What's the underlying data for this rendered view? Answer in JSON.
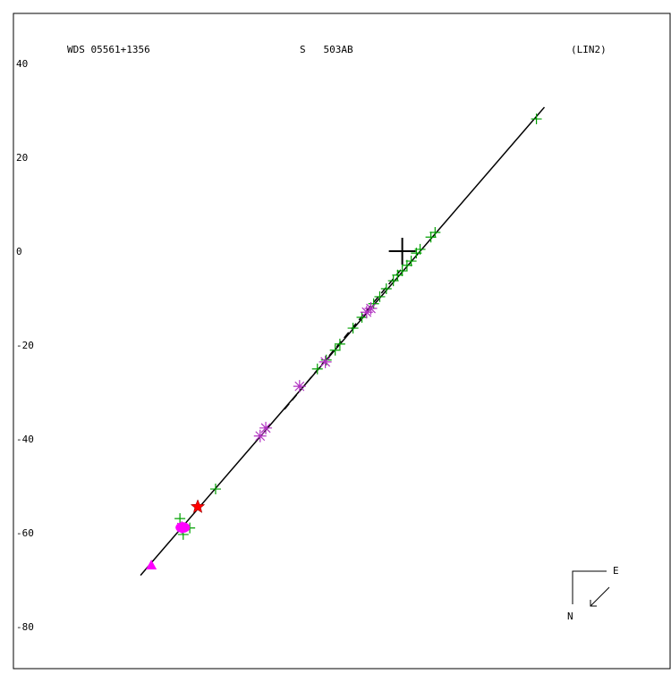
{
  "chart_data": {
    "type": "scatter",
    "title": "WDS 05561+1356",
    "subtitle": "S   503AB",
    "annotation": "(LIN2)",
    "compass": {
      "east": "E",
      "north": "N"
    },
    "xlim": [
      -82.9,
      57.1
    ],
    "ylim": [
      50.7,
      -89.0
    ],
    "yticks": [
      40,
      20,
      0,
      -20,
      -40,
      -60,
      -80
    ],
    "primary": {
      "x": 0,
      "y": 0,
      "color": "#000000"
    },
    "lines": [
      {
        "style": "solid",
        "color": "#000000",
        "x": [
          -55.8,
          30.3
        ],
        "y": [
          -69.1,
          30.7
        ]
      },
      {
        "style": "dashed",
        "color": "#000000",
        "x": [
          -25.1,
          0
        ],
        "y": [
          -33.7,
          -3.6
        ]
      }
    ],
    "series": [
      {
        "marker": "plus",
        "color": "#00a000",
        "x": [
          28.6,
          7.0,
          6.1,
          3.8,
          3.0,
          1.9,
          1.0,
          0,
          -1.0,
          -1.9,
          -3.4,
          -4.8,
          -6.1,
          -8.6,
          -10.5,
          -13.3,
          -14.3,
          -16.2,
          -18.1,
          -39.8,
          -47.4,
          -46.7,
          -45.3
        ],
        "y": [
          28.2,
          4.0,
          3.0,
          0.4,
          -0.4,
          -2.1,
          -3.0,
          -4.2,
          -5.1,
          -6.3,
          -8.0,
          -9.7,
          -11.2,
          -14.1,
          -16.4,
          -19.8,
          -21.1,
          -23.2,
          -25.1,
          -50.7,
          -57.0,
          -60.4,
          -59.0
        ]
      },
      {
        "marker": "asterisk",
        "color": "#b030c0",
        "x": [
          -6.7,
          -7.6,
          -16.4,
          -21.9,
          -29.1,
          -30.3,
          -47.0
        ],
        "y": [
          -12.2,
          -13.0,
          -23.6,
          -28.8,
          -37.7,
          -39.4,
          -58.9
        ]
      },
      {
        "marker": "ellipse",
        "color": "#ff00ff",
        "x": [
          -46.8
        ],
        "y": [
          -58.9
        ]
      },
      {
        "marker": "star",
        "color": "#ff0000",
        "x": [
          -43.6
        ],
        "y": [
          -54.5
        ]
      },
      {
        "marker": "triangle",
        "color": "#ff00ff",
        "x": [
          -53.5
        ],
        "y": [
          -66.9
        ]
      }
    ]
  }
}
